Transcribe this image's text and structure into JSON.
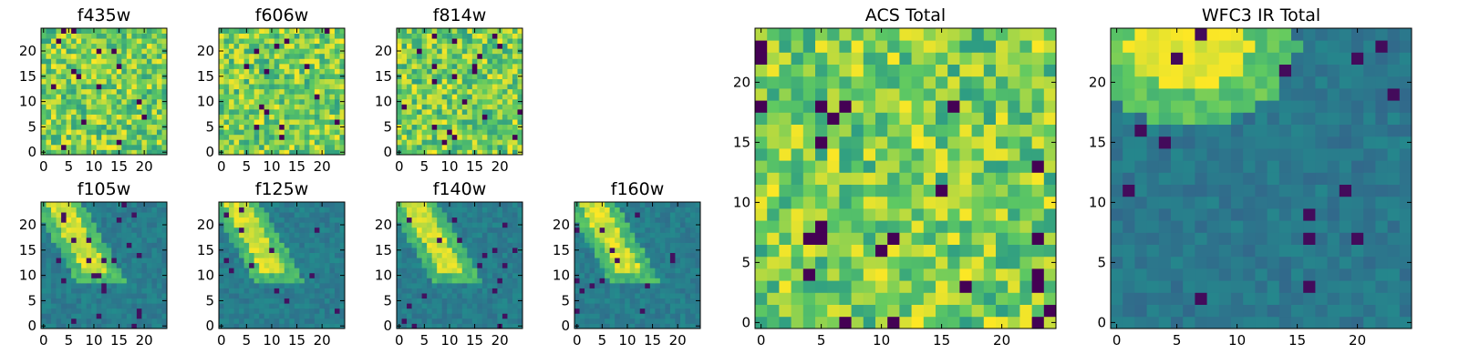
{
  "chart_data": [
    {
      "type": "heatmap",
      "title": "f435w",
      "xticks": [
        0,
        5,
        10,
        15,
        20
      ],
      "yticks": [
        0,
        5,
        10,
        15,
        20
      ],
      "xlim": [
        -0.5,
        24.5
      ],
      "ylim": [
        -0.5,
        24.5
      ],
      "grid_size": [
        25,
        25
      ],
      "colormap": "viridis",
      "texture": "noisy",
      "value_range": [
        0,
        1
      ]
    },
    {
      "type": "heatmap",
      "title": "f606w",
      "xticks": [
        0,
        5,
        10,
        15,
        20
      ],
      "yticks": [
        0,
        5,
        10,
        15,
        20
      ],
      "xlim": [
        -0.5,
        24.5
      ],
      "ylim": [
        -0.5,
        24.5
      ],
      "grid_size": [
        25,
        25
      ],
      "colormap": "viridis",
      "texture": "noisy",
      "value_range": [
        0,
        1
      ]
    },
    {
      "type": "heatmap",
      "title": "f814w",
      "xticks": [
        0,
        5,
        10,
        15,
        20
      ],
      "yticks": [
        0,
        5,
        10,
        15,
        20
      ],
      "xlim": [
        -0.5,
        24.5
      ],
      "ylim": [
        -0.5,
        24.5
      ],
      "grid_size": [
        25,
        25
      ],
      "colormap": "viridis",
      "texture": "noisy",
      "value_range": [
        0,
        1
      ]
    },
    {
      "type": "heatmap",
      "title": "f105w",
      "xticks": [
        0,
        5,
        10,
        15,
        20
      ],
      "yticks": [
        0,
        5,
        10,
        15,
        20
      ],
      "xlim": [
        -0.5,
        24.5
      ],
      "ylim": [
        -0.5,
        24.5
      ],
      "grid_size": [
        25,
        25
      ],
      "colormap": "viridis",
      "texture": "bright diagonal band toward top-left",
      "value_range": [
        0,
        1
      ]
    },
    {
      "type": "heatmap",
      "title": "f125w",
      "xticks": [
        0,
        5,
        10,
        15,
        20
      ],
      "yticks": [
        0,
        5,
        10,
        15,
        20
      ],
      "xlim": [
        -0.5,
        24.5
      ],
      "ylim": [
        -0.5,
        24.5
      ],
      "grid_size": [
        25,
        25
      ],
      "colormap": "viridis",
      "texture": "bright diagonal band toward top-left",
      "value_range": [
        0,
        1
      ]
    },
    {
      "type": "heatmap",
      "title": "f140w",
      "xticks": [
        0,
        5,
        10,
        15,
        20
      ],
      "yticks": [
        0,
        5,
        10,
        15,
        20
      ],
      "xlim": [
        -0.5,
        24.5
      ],
      "ylim": [
        -0.5,
        24.5
      ],
      "grid_size": [
        25,
        25
      ],
      "colormap": "viridis",
      "texture": "bright diagonal band toward top-left",
      "value_range": [
        0,
        1
      ]
    },
    {
      "type": "heatmap",
      "title": "f160w",
      "xticks": [
        0,
        5,
        10,
        15,
        20
      ],
      "yticks": [
        0,
        5,
        10,
        15,
        20
      ],
      "xlim": [
        -0.5,
        24.5
      ],
      "ylim": [
        -0.5,
        24.5
      ],
      "grid_size": [
        25,
        25
      ],
      "colormap": "viridis",
      "texture": "bright diagonal band toward top-left",
      "value_range": [
        0,
        1
      ]
    },
    {
      "type": "heatmap",
      "title": "ACS Total",
      "xticks": [
        0,
        5,
        10,
        15,
        20
      ],
      "yticks": [
        0,
        5,
        10,
        15,
        20
      ],
      "xlim": [
        -0.5,
        24.5
      ],
      "ylim": [
        -0.5,
        24.5
      ],
      "grid_size": [
        25,
        25
      ],
      "colormap": "viridis",
      "texture": "noisy",
      "value_range": [
        0,
        1
      ]
    },
    {
      "type": "heatmap",
      "title": "WFC3 IR Total",
      "xticks": [
        0,
        5,
        10,
        15,
        20
      ],
      "yticks": [
        0,
        5,
        10,
        15,
        20
      ],
      "xlim": [
        -0.5,
        24.5
      ],
      "ylim": [
        -0.5,
        24.5
      ],
      "grid_size": [
        25,
        25
      ],
      "colormap": "viridis",
      "texture": "bright blob at top, dark elsewhere",
      "value_range": [
        0,
        1
      ]
    }
  ]
}
